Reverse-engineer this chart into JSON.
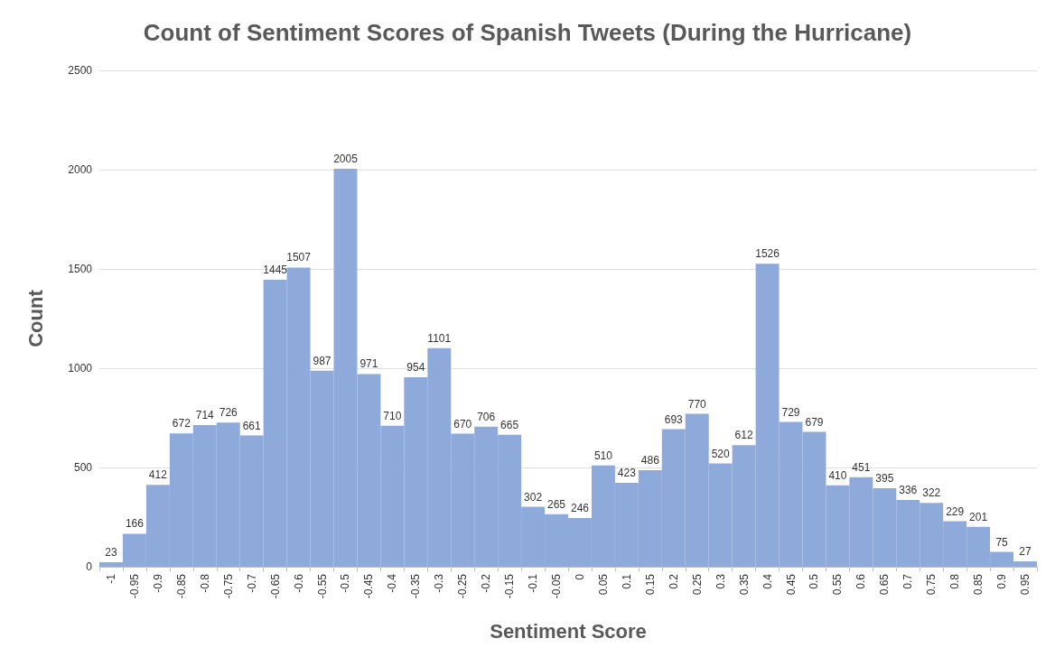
{
  "chart_data": {
    "type": "bar",
    "title": "Count of Sentiment Scores of Spanish Tweets (During the Hurricane)",
    "xlabel": "Sentiment Score",
    "ylabel": "Count",
    "categories": [
      "-1",
      "-0.95",
      "-0.9",
      "-0.85",
      "-0.8",
      "-0.75",
      "-0.7",
      "-0.65",
      "-0.6",
      "-0.55",
      "-0.5",
      "-0.45",
      "-0.4",
      "-0.35",
      "-0.3",
      "-0.25",
      "-0.2",
      "-0.15",
      "-0.1",
      "-0.05",
      "0",
      "0.05",
      "0.1",
      "0.15",
      "0.2",
      "0.25",
      "0.3",
      "0.35",
      "0.4",
      "0.45",
      "0.5",
      "0.55",
      "0.6",
      "0.65",
      "0.7",
      "0.75",
      "0.8",
      "0.85",
      "0.9",
      "0.95"
    ],
    "values": [
      23,
      166,
      412,
      672,
      714,
      726,
      661,
      1445,
      1507,
      987,
      2005,
      971,
      710,
      954,
      1101,
      670,
      706,
      665,
      302,
      265,
      246,
      510,
      423,
      486,
      693,
      770,
      520,
      612,
      1526,
      729,
      679,
      410,
      451,
      395,
      336,
      322,
      229,
      201,
      75,
      27
    ],
    "color": "#8eaadb",
    "ylim": [
      0,
      2500
    ],
    "yticks": [
      0,
      500,
      1000,
      1500,
      2000,
      2500
    ],
    "grid": "y",
    "data_labels": true
  }
}
